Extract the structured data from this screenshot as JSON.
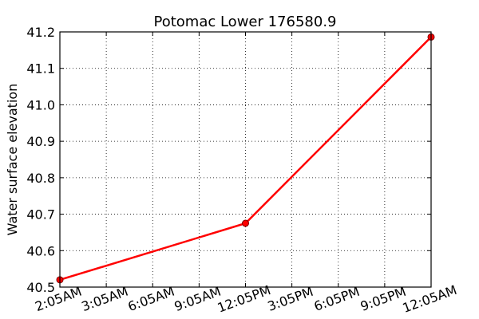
{
  "chart_data": {
    "type": "line",
    "title": "Potomac Lower 176580.9",
    "xlabel": "",
    "ylabel": "Water surface elevation",
    "x_tick_labels": [
      "2:05AM",
      "3:05AM",
      "6:05AM",
      "9:05AM",
      "12:05PM",
      "3:05PM",
      "6:05PM",
      "9:05PM",
      "12:05AM"
    ],
    "y_tick_labels": [
      "40.5",
      "40.6",
      "40.7",
      "40.8",
      "40.9",
      "41.0",
      "41.1",
      "41.2"
    ],
    "ylim": [
      40.5,
      41.2
    ],
    "x_index_range": [
      0,
      8
    ],
    "grid": true,
    "series": [
      {
        "color": "#ff0000",
        "points": [
          {
            "x": 0,
            "y": 40.52
          },
          {
            "x": 4,
            "y": 40.675
          },
          {
            "x": 8,
            "y": 41.186
          }
        ]
      }
    ]
  }
}
